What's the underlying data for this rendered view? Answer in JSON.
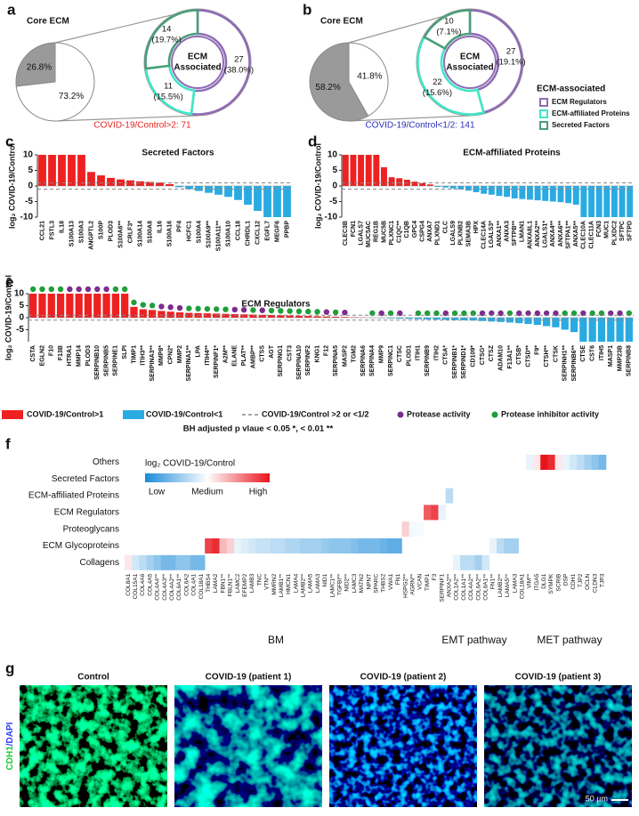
{
  "panel_letters": [
    "a",
    "b",
    "c",
    "d",
    "e",
    "f",
    "g"
  ],
  "chart_data": [
    {
      "type": "pie",
      "title": "Core ECM",
      "values": [
        26.8,
        73.2
      ],
      "value_labels": [
        "26.8%",
        "73.2%"
      ],
      "colors": [
        "#9a9a9a",
        "#ffffff"
      ],
      "caption": "COVID-19/Control>2: 71",
      "caption_color": "#e8231f",
      "donut": {
        "center_label": [
          "ECM",
          "Associated"
        ],
        "values": [
          27,
          11,
          14
        ],
        "percents": [
          38.0,
          15.5,
          19.7
        ],
        "percent_labels": [
          "(38.0%)",
          "(15.5%)",
          "(19.7%)"
        ],
        "colors": [
          "#8f6cb5",
          "#40e6c6",
          "#4a9e7a"
        ]
      }
    },
    {
      "type": "pie",
      "title": "Core ECM",
      "values": [
        58.2,
        41.8
      ],
      "value_labels": [
        "58.2%",
        "41.8%"
      ],
      "colors": [
        "#9a9a9a",
        "#ffffff"
      ],
      "caption": "COVID-19/Control<1/2: 141",
      "caption_color": "#2b2fb8",
      "donut": {
        "center_label": [
          "ECM",
          "Associated"
        ],
        "values": [
          27,
          22,
          10
        ],
        "percents": [
          19.1,
          15.6,
          7.1
        ],
        "percent_labels": [
          "(19.1%)",
          "(15.6%)",
          "(7.1%)"
        ],
        "colors": [
          "#8f6cb5",
          "#40e6c6",
          "#4a9e7a"
        ]
      }
    },
    {
      "type": "bar",
      "title": "Secreted Factors",
      "ylabel": "log₂ COVID-19/Control",
      "colors": [
        "#ee2020",
        "#29abe2"
      ],
      "ylim": [
        -10,
        10
      ],
      "yticks": [
        10,
        5,
        0,
        -5,
        -10
      ],
      "thresholds": [
        1,
        -1
      ],
      "categories": [
        "CCL21",
        "FSTL3",
        "IL18",
        "S100A13",
        "S100A3",
        "ANGPTL2",
        "S100P",
        "PLOD3",
        "S100A6**",
        "CRLF3*",
        "S100A14",
        "S100A8",
        "IL16",
        "S100A16",
        "PF4",
        "HCFC1",
        "S100A4",
        "S100A9**",
        "S100A11**",
        "S100A10",
        "CCL18",
        "CHRDL1",
        "CXCL12",
        "EGFL7",
        "MEGF6",
        "PPBP"
      ],
      "values": [
        10,
        10,
        10,
        10,
        10,
        4.5,
        3.4,
        2.6,
        2.1,
        1.8,
        1.5,
        1.3,
        1.1,
        0.6,
        -0.4,
        -1,
        -1.6,
        -2.2,
        -2.8,
        -3.5,
        -4.5,
        -6,
        -8,
        -10,
        -10,
        -10
      ]
    },
    {
      "type": "bar",
      "title": "ECM-affiliated Proteins",
      "ylabel": "log₂ COVID-19/Control",
      "colors": [
        "#ee2020",
        "#29abe2"
      ],
      "ylim": [
        -10,
        10
      ],
      "yticks": [
        10,
        5,
        0,
        -5,
        -10
      ],
      "thresholds": [
        1,
        -1
      ],
      "categories": [
        "CLEC3B",
        "FCN1",
        "LGALS7",
        "MUC5AC",
        "REG1B",
        "MUC5B",
        "PLXNC1",
        "C1QC**",
        "C1QB",
        "GPC4",
        "CSPG4",
        "ANXA7",
        "PLXND1",
        "CLC",
        "LGALS9",
        "PLXNB2",
        "SEMA3B",
        "HPX",
        "CLEC14A",
        "LGALS3*",
        "ANXA1**",
        "ANXA3",
        "SFTPB**",
        "LMAN1",
        "ANXA8L1",
        "ANXA2**",
        "LGALS1*",
        "ANXA4**",
        "ANXA6**",
        "SFTPA1**",
        "ANXA5**",
        "CLEC10A",
        "CLEC11A",
        "FCN3",
        "MUC1",
        "PLXDC2",
        "SFTPC",
        "SFTPD"
      ],
      "values": [
        10,
        10,
        10,
        10,
        10,
        6,
        2.8,
        2.5,
        2,
        1.4,
        0.9,
        0.5,
        -0.3,
        -0.5,
        -0.8,
        -1.1,
        -1.5,
        -2,
        -2.5,
        -2.8,
        -3.2,
        -3.5,
        -4,
        -4.2,
        -4.4,
        -4.6,
        -4.8,
        -5,
        -5.2,
        -5.5,
        -6,
        -10,
        -10,
        -10,
        -10,
        -10,
        -10,
        -10
      ]
    },
    {
      "type": "bar",
      "title": "ECM Regulators",
      "ylabel": "log₂ COVID-19/Control",
      "colors": [
        "#ee2020",
        "#29abe2"
      ],
      "ylim": [
        -10,
        10
      ],
      "yticks": [
        10,
        5,
        0,
        -5
      ],
      "thresholds": [
        1,
        -1
      ],
      "categories": [
        "CSTA",
        "EGLN2",
        "F10",
        "F13B",
        "HTRA1",
        "MMP14",
        "PLOD3",
        "SERPINB10",
        "SERPINB5",
        "SERPINE1",
        "SLPI",
        "TIMP1",
        "ITIH3**",
        "SERPINA3**",
        "MMP8*",
        "CPN2*",
        "MMP2",
        "SERPINA1**",
        "LPA",
        "ITIH4**",
        "SERPINF1*",
        "A2M**",
        "ELANE",
        "PLAT**",
        "AMBP**",
        "CTSS",
        "AGT",
        "SERPING1",
        "CST3",
        "SERPINA10",
        "SERPINF2",
        "KNG1",
        "F12",
        "SERPINA5",
        "MASP2",
        "TGM2",
        "SERPINA6",
        "SERPINA4",
        "MMP9",
        "SERPINC1",
        "CTSC",
        "PLOD1",
        "ITIH1",
        "SERPINB9",
        "ITIH2",
        "CTSA*",
        "SERPINB1*",
        "SERPIND1*",
        "CD109*",
        "CTSG*",
        "CTSZ",
        "ADAM10",
        "F13A1**",
        "CTSB*",
        "CTSD**",
        "F9*",
        "CTSH**",
        "CTSK",
        "SERPINH1**",
        "SERPINB6**",
        "CTSE",
        "CST6",
        "ITIH5",
        "MASP1",
        "MMP23B",
        "SERPINB8"
      ],
      "values": [
        10,
        10,
        10,
        10,
        10,
        10,
        10,
        10,
        10,
        10,
        10,
        4.5,
        3.5,
        3.2,
        2.8,
        2.5,
        2.2,
        2,
        1.9,
        1.8,
        1.7,
        1.6,
        1.5,
        1.4,
        1.3,
        1.2,
        1.1,
        1,
        0.9,
        0.8,
        0.7,
        0.6,
        0.5,
        0.4,
        0.3,
        0.2,
        0.1,
        -0.1,
        -0.2,
        -0.3,
        -0.4,
        -0.5,
        -0.6,
        -0.7,
        -0.8,
        -0.9,
        -1,
        -1.1,
        -1.2,
        -1.4,
        -1.6,
        -1.8,
        -2,
        -2.3,
        -2.6,
        -3,
        -3.5,
        -4,
        -5,
        -6,
        -10,
        -10,
        -10,
        -10,
        -10,
        -10
      ],
      "dot_colors": [
        "#1f9e3a",
        "#1f9e3a",
        "#1f9e3a",
        "#1f9e3a",
        "#7b2d8e",
        "#7b2d8e",
        "#7b2d8e",
        "#7b2d8e",
        "#7b2d8e",
        "#1f9e3a",
        "#1f9e3a",
        "#1f9e3a",
        "#1f9e3a",
        "#1f9e3a",
        "#7b2d8e",
        "#7b2d8e",
        "#7b2d8e",
        "#1f9e3a",
        "#1f9e3a",
        "#1f9e3a",
        "#1f9e3a",
        "#1f9e3a",
        "#7b2d8e",
        "#7b2d8e",
        "#1f9e3a",
        "#7b2d8e",
        "#1f9e3a",
        "#1f9e3a",
        "#1f9e3a",
        "#1f9e3a",
        "#1f9e3a",
        "#1f9e3a",
        "#7b2d8e",
        "#1f9e3a",
        "#7b2d8e",
        null,
        null,
        "#1f9e3a",
        "#7b2d8e",
        "#1f9e3a",
        "#7b2d8e",
        null,
        "#1f9e3a",
        "#1f9e3a",
        "#1f9e3a",
        "#7b2d8e",
        "#1f9e3a",
        "#1f9e3a",
        "#1f9e3a",
        "#7b2d8e",
        "#7b2d8e",
        "#7b2d8e",
        "#1f9e3a",
        "#7b2d8e",
        "#7b2d8e",
        "#7b2d8e",
        "#7b2d8e",
        "#7b2d8e",
        "#1f9e3a",
        "#1f9e3a",
        "#7b2d8e",
        "#1f9e3a",
        "#1f9e3a",
        "#7b2d8e",
        "#7b2d8e",
        "#1f9e3a"
      ],
      "bar_legend": [
        {
          "label": "COVID-19/Control>1",
          "color": "#ee2020"
        },
        {
          "label": "COVID-19/Control<1",
          "color": "#29abe2"
        }
      ],
      "line_legend": {
        "label": "COVID-19/Control >2 or <1/2",
        "color": "#888888"
      },
      "dot_legend": [
        {
          "label": "Protease activity",
          "color": "#7b2d8e"
        },
        {
          "label": "Protease inhibitor activity",
          "color": "#1f9e3a"
        }
      ],
      "note": "BH adjusted p vlaue < 0.05 *, < 0.01 **"
    },
    {
      "type": "heatmap",
      "colorbar_title": "log₂ COVID-19/Control",
      "scale_labels": [
        "Low",
        "Medium",
        "High"
      ],
      "zlim": [
        -10,
        10
      ],
      "colorscale": [
        "#1b8ad8",
        "#ffffff",
        "#e8141c"
      ],
      "rows": [
        "Others",
        "Secreted Factors",
        "ECM-affiliated Proteins",
        "ECM Regulators",
        "Proteoglycans",
        "ECM Glycoproteins",
        "Collagens"
      ],
      "group_labels": [
        "BM",
        "EMT pathway",
        "MET pathway"
      ],
      "categories": [
        "COL8A1",
        "COL15A1",
        "COL4A6",
        "COL4A5",
        "COL4A4**",
        "COL4A3**",
        "COL4A2**",
        "COL6A1**",
        "COL6A2",
        "COL4A1",
        "COL18A1",
        "THBS4",
        "LAMA2",
        "FBN1**",
        "FBLN1**",
        "LAMC2",
        "EFEMP2",
        "LAMB3",
        "TNC",
        "VTN**",
        "MMRN2",
        "LAMB1**",
        "HMCN1",
        "LAMA4",
        "LAMB2**",
        "LAMA5",
        "LAMA3",
        "NID1",
        "LAMC1**",
        "TGFBI**",
        "NID2**",
        "LAMC3",
        "MATN2",
        "NPNT",
        "SPARC",
        "THBS2",
        "VWA1",
        "FN1",
        "HSPG2**",
        "AGRN**",
        "VCAN",
        "TIMP1",
        "F3",
        "SERPINF1",
        "ANXA2**",
        "COL1A2**",
        "COL1A1**",
        "COL4A2**",
        "COL6A2**",
        "COL6A1**",
        "FN1**",
        "LAMB2**",
        "LAMA5**",
        "LAMA3",
        "COL18A1",
        "VIM**",
        "ITGA5",
        "DLG1",
        "SYMPK",
        "SCRIB",
        "DSP",
        "CDH1",
        "TJP2",
        "OCLN",
        "CLDN3",
        "TJP3"
      ],
      "cell_rows": [
        "Collagens",
        "Collagens",
        "Collagens",
        "Collagens",
        "Collagens",
        "Collagens",
        "Collagens",
        "Collagens",
        "Collagens",
        "Collagens",
        "Collagens",
        "ECM Glycoproteins",
        "ECM Glycoproteins",
        "ECM Glycoproteins",
        "ECM Glycoproteins",
        "ECM Glycoproteins",
        "ECM Glycoproteins",
        "ECM Glycoproteins",
        "ECM Glycoproteins",
        "ECM Glycoproteins",
        "ECM Glycoproteins",
        "ECM Glycoproteins",
        "ECM Glycoproteins",
        "ECM Glycoproteins",
        "ECM Glycoproteins",
        "ECM Glycoproteins",
        "ECM Glycoproteins",
        "ECM Glycoproteins",
        "ECM Glycoproteins",
        "ECM Glycoproteins",
        "ECM Glycoproteins",
        "ECM Glycoproteins",
        "ECM Glycoproteins",
        "ECM Glycoproteins",
        "ECM Glycoproteins",
        "ECM Glycoproteins",
        "ECM Glycoproteins",
        "ECM Glycoproteins",
        "Proteoglycans",
        "Proteoglycans",
        "Proteoglycans",
        "ECM Regulators",
        "ECM Regulators",
        "ECM Regulators",
        "ECM-affiliated Proteins",
        "Collagens",
        "Collagens",
        "Collagens",
        "Collagens",
        "Collagens",
        "ECM Glycoproteins",
        "ECM Glycoproteins",
        "ECM Glycoproteins",
        "ECM Glycoproteins",
        "Proteoglycans",
        "Others",
        "Others",
        "Others",
        "Others",
        "Others",
        "Others",
        "Others",
        "Others",
        "Others",
        "Others",
        "Others"
      ],
      "values": [
        1,
        -2,
        -3,
        -4,
        -5,
        -6,
        -6,
        -5,
        -5,
        -6,
        -6,
        8,
        9,
        3,
        2,
        -1,
        -1.5,
        -2,
        -2.5,
        -2.5,
        -3,
        -3,
        -3.5,
        -3.5,
        -4,
        -4,
        -4,
        -4.5,
        -5,
        -5,
        -5,
        -5.5,
        -6,
        -6,
        -6,
        -6.5,
        -7,
        -7,
        2,
        -0.5,
        -0.3,
        7,
        8,
        -1,
        -3,
        -1,
        -3,
        -3,
        -4,
        -2,
        -1,
        -3,
        -4,
        -4,
        0,
        -1,
        1,
        10,
        9,
        1,
        -1,
        -2,
        -3,
        -4,
        -5,
        -6
      ]
    }
  ],
  "ecm_legend": {
    "title": "ECM-associated",
    "items": [
      {
        "label": "ECM Regulators",
        "color": "#8f6cb5"
      },
      {
        "label": "ECM-affiliated Proteins",
        "color": "#40e6c6"
      },
      {
        "label": "Secreted Factors",
        "color": "#4a9e7a"
      }
    ]
  },
  "images": {
    "captions": [
      "Control",
      "COVID-19 (patient 1)",
      "COVID-19 (patient 2)",
      "COVID-19 (patient 3)"
    ],
    "stain": [
      "CDH1",
      "/DAPI"
    ],
    "stain_colors": [
      "#22c83a",
      "#2f3cff"
    ],
    "scale_bar": "50 µm"
  }
}
